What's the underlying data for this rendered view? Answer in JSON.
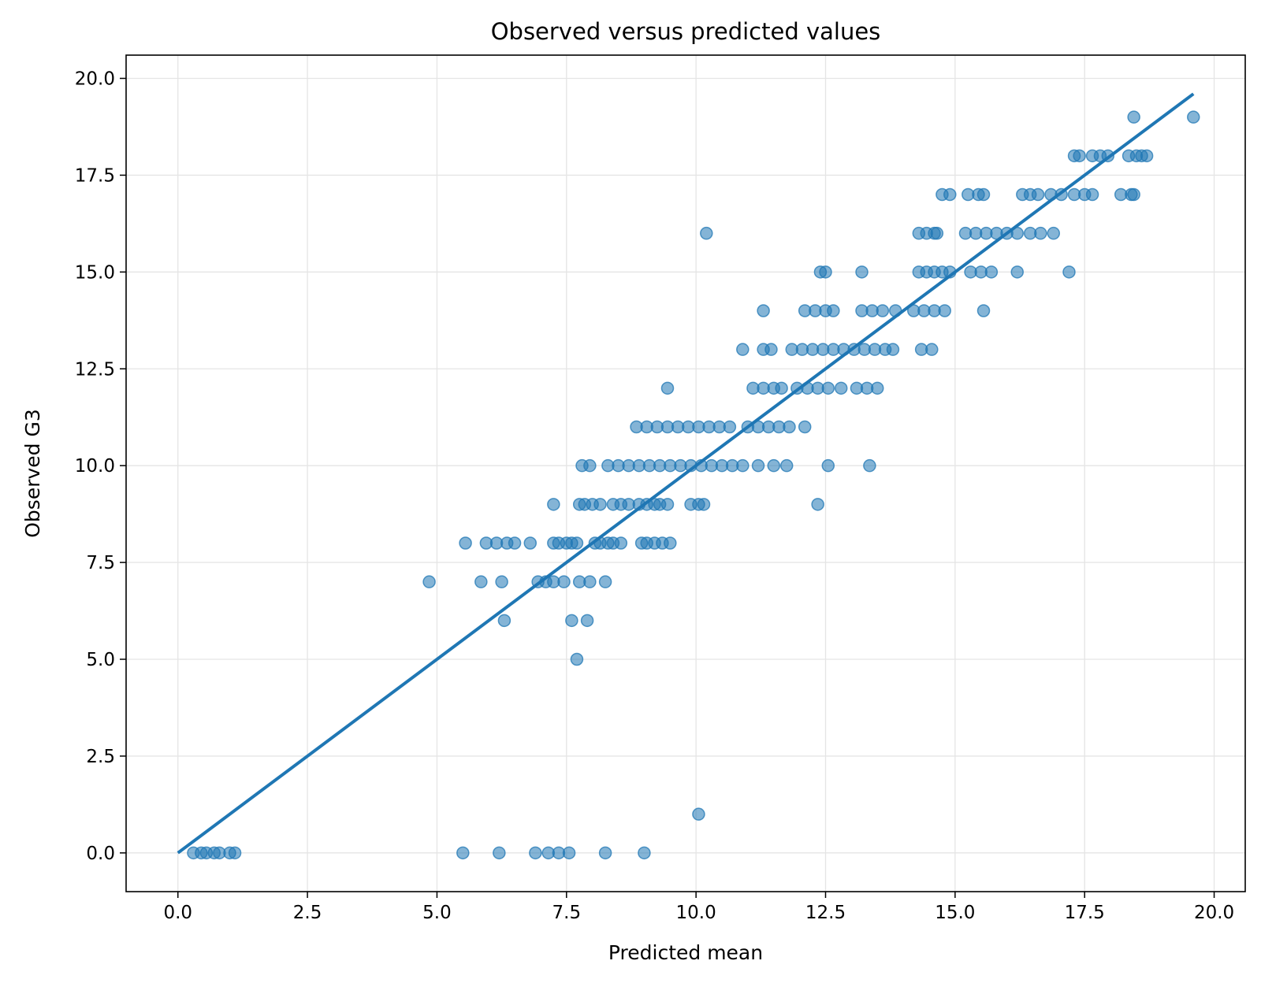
{
  "chart_data": {
    "type": "scatter",
    "title": "Observed versus predicted values",
    "xlabel": "Predicted mean",
    "ylabel": "Observed G3",
    "xlim": [
      -1.0,
      20.6
    ],
    "ylim": [
      -1.0,
      20.6
    ],
    "xticks": [
      "0.0",
      "2.5",
      "5.0",
      "7.5",
      "10.0",
      "12.5",
      "15.0",
      "17.5",
      "20.0"
    ],
    "yticks": [
      "0.0",
      "2.5",
      "5.0",
      "7.5",
      "10.0",
      "12.5",
      "15.0",
      "17.5",
      "20.0"
    ],
    "grid": true,
    "legend": false,
    "colors": {
      "points": "#1f77b4",
      "line": "#1f77b4",
      "grid": "#e5e5e5"
    },
    "reference_line": {
      "x": [
        0.0,
        19.6
      ],
      "y": [
        0.0,
        19.6
      ]
    },
    "series": [
      {
        "points": [
          [
            0.3,
            0
          ],
          [
            0.45,
            0
          ],
          [
            0.55,
            0
          ],
          [
            0.7,
            0
          ],
          [
            0.8,
            0
          ],
          [
            1.0,
            0
          ],
          [
            1.1,
            0
          ],
          [
            5.5,
            0
          ],
          [
            6.2,
            0
          ],
          [
            6.9,
            0
          ],
          [
            7.15,
            0
          ],
          [
            7.35,
            0
          ],
          [
            7.55,
            0
          ],
          [
            8.25,
            0
          ],
          [
            9.0,
            0
          ],
          [
            10.05,
            1
          ],
          [
            7.7,
            5
          ],
          [
            6.3,
            6
          ],
          [
            7.6,
            6
          ],
          [
            7.9,
            6
          ],
          [
            4.85,
            7
          ],
          [
            5.85,
            7
          ],
          [
            6.25,
            7
          ],
          [
            6.95,
            7
          ],
          [
            7.1,
            7
          ],
          [
            7.25,
            7
          ],
          [
            7.45,
            7
          ],
          [
            7.75,
            7
          ],
          [
            7.95,
            7
          ],
          [
            8.25,
            7
          ],
          [
            5.55,
            8
          ],
          [
            5.95,
            8
          ],
          [
            6.15,
            8
          ],
          [
            6.35,
            8
          ],
          [
            6.5,
            8
          ],
          [
            6.8,
            8
          ],
          [
            7.25,
            8
          ],
          [
            7.35,
            8
          ],
          [
            7.5,
            8
          ],
          [
            7.6,
            8
          ],
          [
            7.7,
            8
          ],
          [
            8.05,
            8
          ],
          [
            8.15,
            8
          ],
          [
            8.3,
            8
          ],
          [
            8.4,
            8
          ],
          [
            8.55,
            8
          ],
          [
            8.95,
            8
          ],
          [
            9.05,
            8
          ],
          [
            9.2,
            8
          ],
          [
            9.35,
            8
          ],
          [
            9.5,
            8
          ],
          [
            7.25,
            9
          ],
          [
            7.75,
            9
          ],
          [
            7.85,
            9
          ],
          [
            8.0,
            9
          ],
          [
            8.15,
            9
          ],
          [
            8.4,
            9
          ],
          [
            8.55,
            9
          ],
          [
            8.7,
            9
          ],
          [
            8.9,
            9
          ],
          [
            9.05,
            9
          ],
          [
            9.2,
            9
          ],
          [
            9.3,
            9
          ],
          [
            9.45,
            9
          ],
          [
            9.9,
            9
          ],
          [
            10.05,
            9
          ],
          [
            10.15,
            9
          ],
          [
            12.35,
            9
          ],
          [
            7.8,
            10
          ],
          [
            7.95,
            10
          ],
          [
            8.3,
            10
          ],
          [
            8.5,
            10
          ],
          [
            8.7,
            10
          ],
          [
            8.9,
            10
          ],
          [
            9.1,
            10
          ],
          [
            9.3,
            10
          ],
          [
            9.5,
            10
          ],
          [
            9.7,
            10
          ],
          [
            9.9,
            10
          ],
          [
            10.1,
            10
          ],
          [
            10.3,
            10
          ],
          [
            10.5,
            10
          ],
          [
            10.7,
            10
          ],
          [
            10.9,
            10
          ],
          [
            11.2,
            10
          ],
          [
            11.5,
            10
          ],
          [
            11.75,
            10
          ],
          [
            12.55,
            10
          ],
          [
            13.35,
            10
          ],
          [
            9.45,
            12
          ],
          [
            8.85,
            11
          ],
          [
            9.05,
            11
          ],
          [
            9.25,
            11
          ],
          [
            9.45,
            11
          ],
          [
            9.65,
            11
          ],
          [
            9.85,
            11
          ],
          [
            10.05,
            11
          ],
          [
            10.25,
            11
          ],
          [
            10.45,
            11
          ],
          [
            10.65,
            11
          ],
          [
            11.0,
            11
          ],
          [
            11.2,
            11
          ],
          [
            11.4,
            11
          ],
          [
            11.6,
            11
          ],
          [
            11.8,
            11
          ],
          [
            12.1,
            11
          ],
          [
            10.2,
            16
          ],
          [
            10.9,
            13
          ],
          [
            11.3,
            14
          ],
          [
            11.3,
            13
          ],
          [
            11.45,
            13
          ],
          [
            11.1,
            12
          ],
          [
            11.3,
            12
          ],
          [
            11.5,
            12
          ],
          [
            11.65,
            12
          ],
          [
            11.95,
            12
          ],
          [
            12.15,
            12
          ],
          [
            12.35,
            12
          ],
          [
            12.55,
            12
          ],
          [
            12.8,
            12
          ],
          [
            13.1,
            12
          ],
          [
            13.3,
            12
          ],
          [
            13.5,
            12
          ],
          [
            11.85,
            13
          ],
          [
            12.05,
            13
          ],
          [
            12.25,
            13
          ],
          [
            12.45,
            13
          ],
          [
            12.65,
            13
          ],
          [
            12.85,
            13
          ],
          [
            13.05,
            13
          ],
          [
            13.25,
            13
          ],
          [
            13.45,
            13
          ],
          [
            13.65,
            13
          ],
          [
            13.8,
            13
          ],
          [
            14.35,
            13
          ],
          [
            14.55,
            13
          ],
          [
            12.1,
            14
          ],
          [
            12.3,
            14
          ],
          [
            12.5,
            14
          ],
          [
            12.65,
            14
          ],
          [
            13.2,
            14
          ],
          [
            13.4,
            14
          ],
          [
            13.6,
            14
          ],
          [
            13.85,
            14
          ],
          [
            14.2,
            14
          ],
          [
            14.4,
            14
          ],
          [
            14.6,
            14
          ],
          [
            14.8,
            14
          ],
          [
            15.55,
            14
          ],
          [
            12.4,
            15
          ],
          [
            12.5,
            15
          ],
          [
            13.2,
            15
          ],
          [
            14.3,
            15
          ],
          [
            14.45,
            15
          ],
          [
            14.6,
            15
          ],
          [
            14.75,
            15
          ],
          [
            14.9,
            15
          ],
          [
            15.3,
            15
          ],
          [
            15.5,
            15
          ],
          [
            15.7,
            15
          ],
          [
            16.2,
            15
          ],
          [
            17.2,
            15
          ],
          [
            14.3,
            16
          ],
          [
            14.45,
            16
          ],
          [
            14.6,
            16
          ],
          [
            14.65,
            16
          ],
          [
            15.2,
            16
          ],
          [
            15.4,
            16
          ],
          [
            15.6,
            16
          ],
          [
            15.8,
            16
          ],
          [
            16.0,
            16
          ],
          [
            16.2,
            16
          ],
          [
            16.45,
            16
          ],
          [
            16.65,
            16
          ],
          [
            16.9,
            16
          ],
          [
            14.75,
            17
          ],
          [
            14.9,
            17
          ],
          [
            15.25,
            17
          ],
          [
            15.45,
            17
          ],
          [
            15.55,
            17
          ],
          [
            16.3,
            17
          ],
          [
            16.45,
            17
          ],
          [
            16.6,
            17
          ],
          [
            16.85,
            17
          ],
          [
            17.05,
            17
          ],
          [
            17.3,
            17
          ],
          [
            17.5,
            17
          ],
          [
            17.65,
            17
          ],
          [
            18.2,
            17
          ],
          [
            18.4,
            17
          ],
          [
            18.45,
            17
          ],
          [
            17.3,
            18
          ],
          [
            17.4,
            18
          ],
          [
            17.65,
            18
          ],
          [
            17.8,
            18
          ],
          [
            17.95,
            18
          ],
          [
            18.35,
            18
          ],
          [
            18.5,
            18
          ],
          [
            18.6,
            18
          ],
          [
            18.7,
            18
          ],
          [
            18.45,
            19
          ],
          [
            19.6,
            19
          ]
        ]
      }
    ]
  }
}
